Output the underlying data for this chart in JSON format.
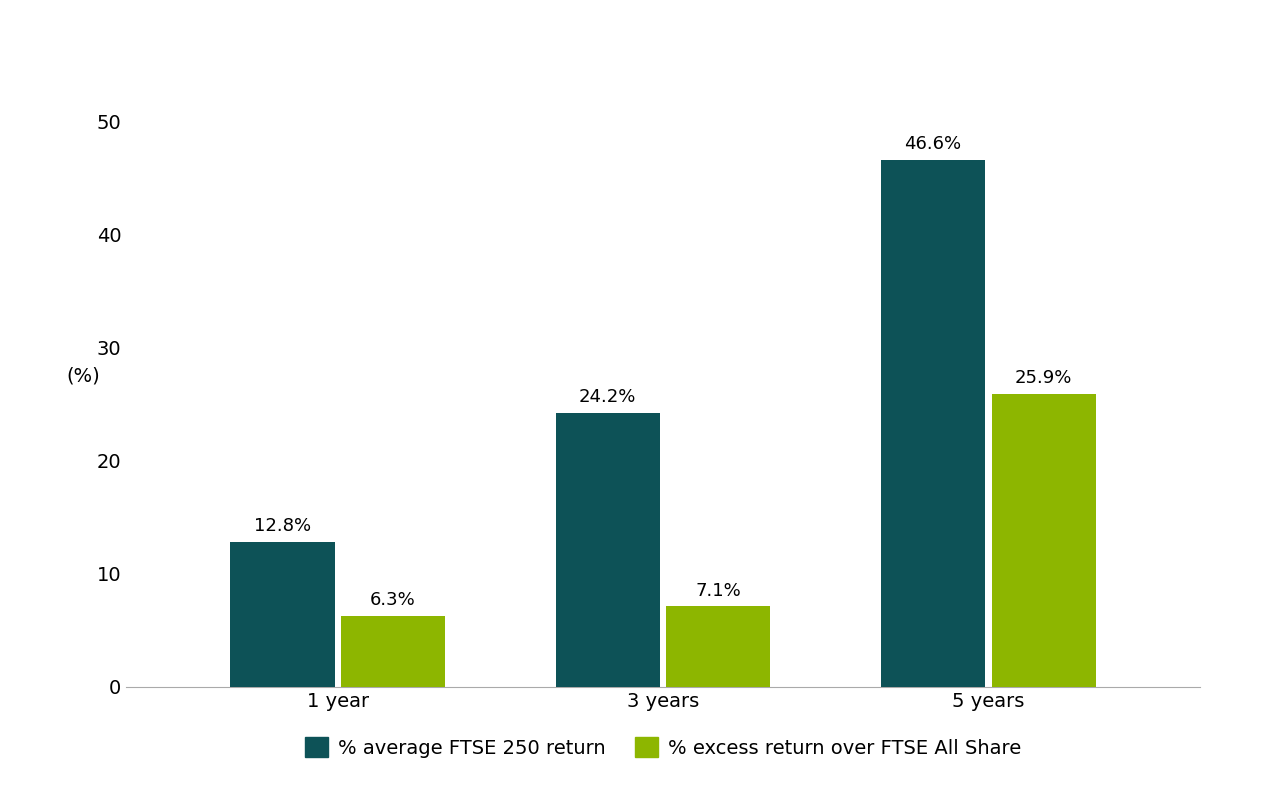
{
  "categories": [
    "1 year",
    "3 years",
    "5 years"
  ],
  "series": [
    {
      "label": "% average FTSE 250 return",
      "values": [
        12.8,
        24.2,
        46.6
      ],
      "color": "#0d5257"
    },
    {
      "label": "% excess return over FTSE All Share",
      "values": [
        6.3,
        7.1,
        25.9
      ],
      "color": "#8db600"
    }
  ],
  "dark_teal": "#0d5257",
  "lime_green": "#8db600",
  "ylabel": "(%)",
  "ylim": [
    0,
    55
  ],
  "yticks": [
    0,
    10,
    20,
    30,
    40,
    50
  ],
  "bar_width": 0.32,
  "bar_gap": 0.02,
  "value_labels": [
    [
      "12.8%",
      "6.3%"
    ],
    [
      "24.2%",
      "7.1%"
    ],
    [
      "46.6%",
      "25.9%"
    ]
  ],
  "background_color": "#ffffff",
  "label_fontsize": 14,
  "tick_fontsize": 14,
  "value_fontsize": 13,
  "legend_fontsize": 14
}
